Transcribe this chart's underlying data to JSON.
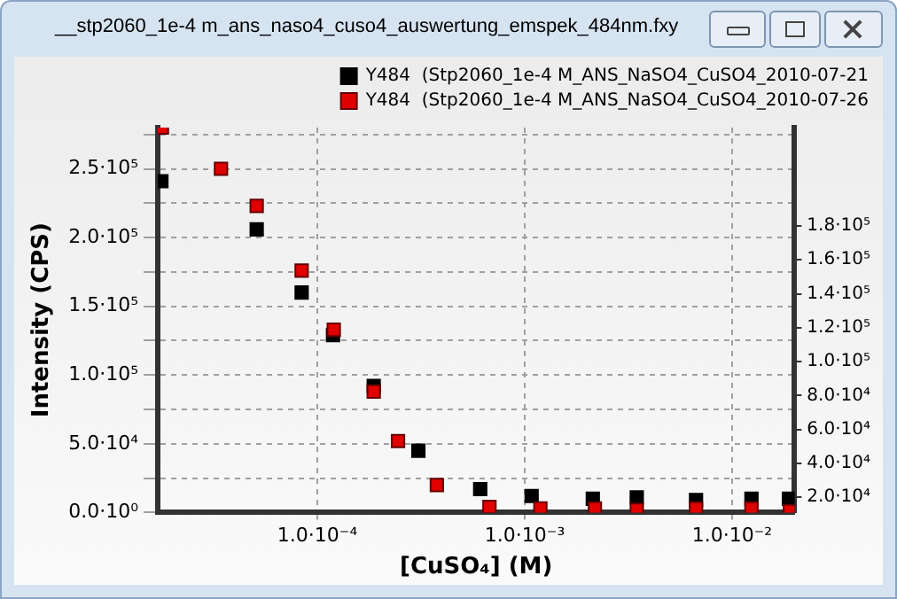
{
  "chart_data": {
    "type": "scatter",
    "title": "__stp2060_1e-4 m_ans_naso4_cuso4_auswertung_emspek_484nm.fxy",
    "xlabel": "[CuSO₄] (M)",
    "ylabel": "Intensity (CPS)",
    "log": "x",
    "marker": "square",
    "grid": true,
    "legend": "top right",
    "xlim": [
      1.7e-05,
      0.02
    ],
    "xticks": [
      {
        "value": 0.0001,
        "label": "1.0·10⁻⁴"
      },
      {
        "value": 0.001,
        "label": "1.0·10⁻³"
      },
      {
        "value": 0.01,
        "label": "1.0·10⁻²"
      }
    ],
    "ylim": [
      0,
      280000
    ],
    "yticks": [
      {
        "value": 0,
        "label": "0.0·10⁰"
      },
      {
        "value": 25000,
        "label": null
      },
      {
        "value": 50000,
        "label": "5.0·10⁴"
      },
      {
        "value": 75000,
        "label": null
      },
      {
        "value": 100000,
        "label": "1.0·10⁵"
      },
      {
        "value": 125000,
        "label": null
      },
      {
        "value": 150000,
        "label": "1.5·10⁵"
      },
      {
        "value": 175000,
        "label": null
      },
      {
        "value": 200000,
        "label": "2.0·10⁵"
      },
      {
        "value": 225000,
        "label": null
      },
      {
        "value": 250000,
        "label": "2.5·10⁵"
      },
      {
        "value": 275000,
        "label": null
      }
    ],
    "y2lim": [
      11000,
      238000
    ],
    "y2ticks": [
      {
        "value": 20000,
        "label": "2.0·10⁴"
      },
      {
        "value": 40000,
        "label": "4.0·10⁴"
      },
      {
        "value": 60000,
        "label": "6.0·10⁴"
      },
      {
        "value": 80000,
        "label": "8.0·10⁴"
      },
      {
        "value": 100000,
        "label": "1.0·10⁵"
      },
      {
        "value": 120000,
        "label": "1.2·10⁵"
      },
      {
        "value": 140000,
        "label": "1.4·10⁵"
      },
      {
        "value": 160000,
        "label": "1.6·10⁵"
      },
      {
        "value": 180000,
        "label": "1.8·10⁵"
      }
    ],
    "series": [
      {
        "name": "Y484  (Stp2060_1e-4 M_ANS_NaSO4_CuSO4_2010-07-21",
        "color": "#000000",
        "x": [
          1.77e-05,
          5.1e-05,
          8.4e-05,
          0.000119,
          0.000187,
          0.000307,
          0.00061,
          0.00108,
          0.00213,
          0.00347,
          0.0067,
          0.0124,
          0.0188
        ],
        "values": [
          241000,
          206000,
          160000,
          129000,
          92000,
          45000,
          17000,
          12000,
          10000,
          11000,
          9000,
          10000,
          10000
        ]
      },
      {
        "name": "Y484  (Stp2060_1e-4 M_ANS_NaSO4_CuSO4_2010-07-26",
        "color": "#e00000",
        "x": [
          1.78e-05,
          3.43e-05,
          5.1e-05,
          8.4e-05,
          0.00012,
          0.000187,
          0.000245,
          0.000377,
          0.000676,
          0.00119,
          0.00218,
          0.00347,
          0.0067,
          0.0124,
          0.019
        ],
        "values": [
          280000,
          250000,
          223000,
          176000,
          133000,
          88000,
          52000,
          20000,
          4000,
          3000,
          3000,
          2000,
          3000,
          3000,
          1000
        ]
      }
    ]
  }
}
